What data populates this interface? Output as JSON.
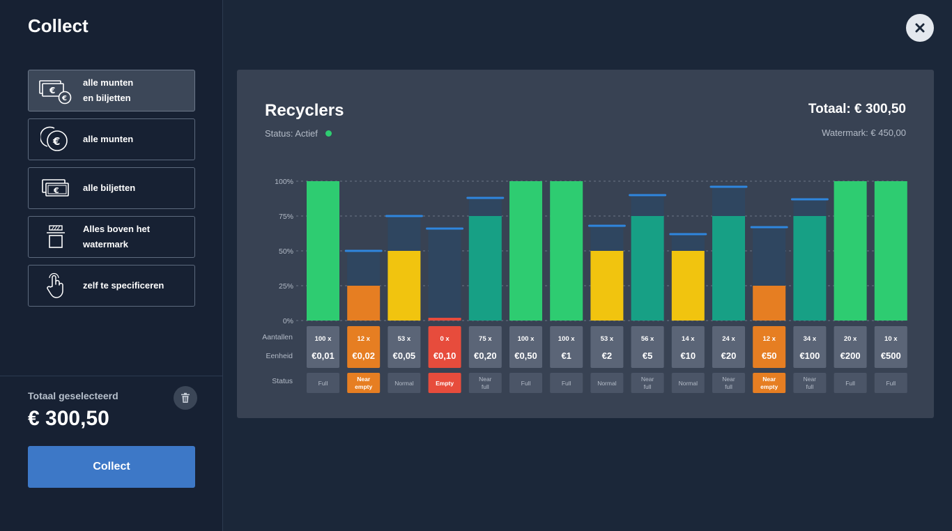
{
  "sidebar": {
    "title": "Collect",
    "options": [
      {
        "label": "alle munten\nen biljetten",
        "icon": "coins-and-notes-icon",
        "selected": true
      },
      {
        "label": "alle munten",
        "icon": "coins-icon",
        "selected": false
      },
      {
        "label": "alle biljetten",
        "icon": "banknotes-icon",
        "selected": false
      },
      {
        "label": "Alles boven het\nwatermark",
        "icon": "watermark-icon",
        "selected": false
      },
      {
        "label": "zelf te specificeren",
        "icon": "hand-pointer-icon",
        "selected": false
      }
    ],
    "total_label": "Totaal geselecteerd",
    "total_value": "€ 300,50",
    "collect_label": "Collect"
  },
  "panel": {
    "title": "Recyclers",
    "status_label": "Status: Actief",
    "total": "Totaal: € 300,50",
    "watermark": "Watermark: € 450,00",
    "row_labels": {
      "counts": "Aantallen",
      "unit": "Eenheid",
      "status": "Status"
    }
  },
  "colors": {
    "full": "#2ecc71",
    "near_full": "#17a085",
    "normal": "#f1c40f",
    "near_empty": "#e67e22",
    "empty": "#e74c3c",
    "track": "#2f4660",
    "marker": "#2f86de"
  },
  "chart_data": {
    "type": "bar",
    "y_ticks": [
      "100%",
      "75%",
      "50%",
      "25%",
      "0%"
    ],
    "ylim": [
      0,
      100
    ],
    "categories": [
      "€0,01",
      "€0,02",
      "€0,05",
      "€0,10",
      "€0,20",
      "€0,50",
      "€1",
      "€2",
      "€5",
      "€10",
      "€20",
      "€50",
      "€100",
      "€200",
      "€500"
    ],
    "counts": [
      "100 x",
      "12 x",
      "53 x",
      "0 x",
      "75 x",
      "100 x",
      "100 x",
      "53 x",
      "56 x",
      "14 x",
      "24 x",
      "12 x",
      "34 x",
      "20 x",
      "10 x"
    ],
    "fill_percent": [
      100,
      25,
      50,
      2,
      75,
      100,
      100,
      50,
      75,
      50,
      75,
      25,
      75,
      100,
      100
    ],
    "max_percent": [
      100,
      50,
      75,
      66,
      88,
      100,
      100,
      68,
      90,
      62,
      96,
      67,
      87,
      100,
      100
    ],
    "status": [
      "Full",
      "Near empty",
      "Normal",
      "Empty",
      "Near full",
      "Full",
      "Full",
      "Normal",
      "Near full",
      "Normal",
      "Near full",
      "Near empty",
      "Near full",
      "Full",
      "Full"
    ],
    "status_lines": [
      [
        "Full"
      ],
      [
        "Near",
        "empty"
      ],
      [
        "Normal"
      ],
      [
        "Empty"
      ],
      [
        "Near",
        "full"
      ],
      [
        "Full"
      ],
      [
        "Full"
      ],
      [
        "Normal"
      ],
      [
        "Near",
        "full"
      ],
      [
        "Normal"
      ],
      [
        "Near",
        "full"
      ],
      [
        "Near",
        "empty"
      ],
      [
        "Near",
        "full"
      ],
      [
        "Full"
      ],
      [
        "Full"
      ]
    ]
  }
}
